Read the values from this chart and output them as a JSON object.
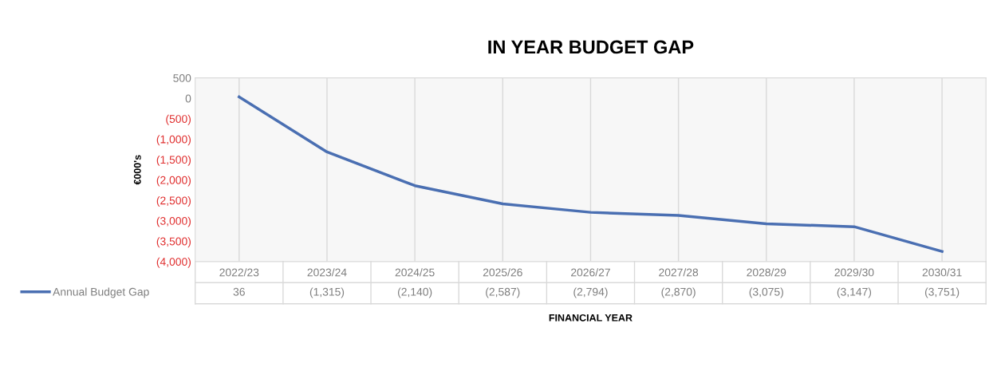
{
  "chart_data": {
    "type": "line",
    "title": "IN YEAR BUDGET GAP",
    "xlabel": "FINANCIAL YEAR",
    "ylabel": "€000's",
    "categories": [
      "2022/23",
      "2023/24",
      "2024/25",
      "2025/26",
      "2026/27",
      "2027/28",
      "2028/29",
      "2029/30",
      "2030/31"
    ],
    "series": [
      {
        "name": "Annual Budget Gap",
        "color": "#4a6fb2",
        "values": [
          36,
          -1315,
          -2140,
          -2587,
          -2794,
          -2870,
          -3075,
          -3147,
          -3751
        ],
        "value_labels": [
          "36",
          "(1,315)",
          "(2,140)",
          "(2,587)",
          "(2,794)",
          "(2,870)",
          "(3,075)",
          "(3,147)",
          "(3,751)"
        ]
      }
    ],
    "ylim": [
      -4000,
      500
    ],
    "yticks": [
      500,
      0,
      {
        "value": -500,
        "label": "(500)"
      },
      {
        "value": -1000,
        "label": "(1,000)"
      },
      {
        "value": -1500,
        "label": "(1,500)"
      },
      {
        "value": -2000,
        "label": "(2,000)"
      },
      {
        "value": -2500,
        "label": "(2,500)"
      },
      {
        "value": -3000,
        "label": "(3,000)"
      },
      {
        "value": -3500,
        "label": "(3,500)"
      },
      {
        "value": -4000,
        "label": "(4,000)"
      }
    ],
    "grid": "x",
    "legend": "bottom left",
    "marker": "none",
    "line_style": "solid"
  }
}
